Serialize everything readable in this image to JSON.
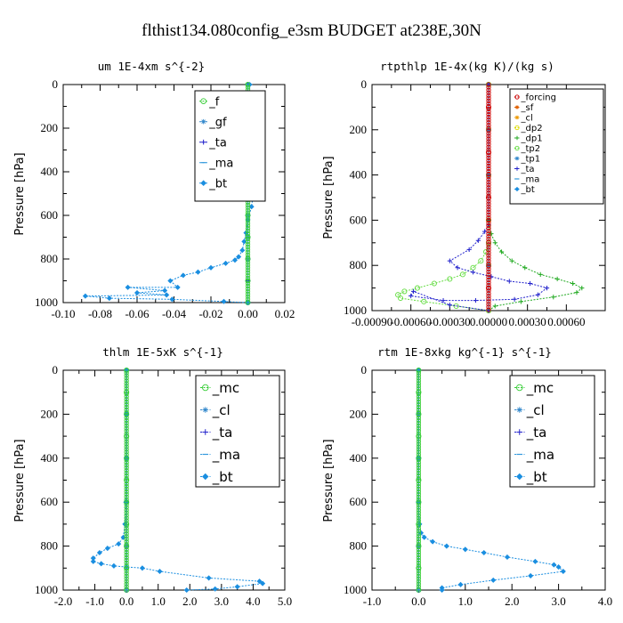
{
  "title": "flthist134.080config_e3sm  BUDGET at238E,30N",
  "chart_data": [
    {
      "type": "line",
      "title": "um  1E-4xm s^{-2}",
      "ylabel": "Pressure [hPa]",
      "xlim": [
        -0.1,
        0.02
      ],
      "ylim": [
        1000,
        0
      ],
      "xticks": [
        "-0.10",
        "-0.08",
        "-0.06",
        "-0.04",
        "-0.02",
        "0.00",
        "0.02"
      ],
      "yticks": [
        "0",
        "200",
        "400",
        "600",
        "800",
        "1000"
      ],
      "legend": "top-right",
      "series": [
        {
          "name": "_f",
          "color": "#33cc33",
          "marker": "circle",
          "x": [
            0,
            0,
            0,
            0,
            0,
            0,
            0,
            0,
            0,
            0,
            0
          ],
          "y": [
            0,
            100,
            200,
            300,
            400,
            500,
            600,
            700,
            800,
            900,
            1000
          ]
        },
        {
          "name": "_gf",
          "color": "#3388cc",
          "marker": "star",
          "x": [
            0,
            0,
            0,
            0,
            0,
            0,
            0,
            0,
            0
          ],
          "y": [
            0,
            150,
            300,
            450,
            600,
            700,
            800,
            900,
            1000
          ]
        },
        {
          "name": "_ta",
          "color": "#2222cc",
          "marker": "plus",
          "x": [
            0,
            0,
            0,
            0,
            0,
            0,
            0
          ],
          "y": [
            0,
            200,
            400,
            600,
            800,
            900,
            1000
          ]
        },
        {
          "name": "_ma",
          "color": "#3399dd",
          "marker": "dash",
          "x": [
            0,
            0,
            0,
            0,
            0,
            0
          ],
          "y": [
            0,
            200,
            400,
            600,
            800,
            1000
          ]
        },
        {
          "name": "_bt",
          "color": "#1a8ee0",
          "marker": "diamond",
          "x": [
            0.001,
            0.001,
            0.002,
            0.003,
            0.003,
            0.002,
            0.0,
            0.0,
            0.002,
            0.003,
            0.002,
            0.0,
            -0.001,
            -0.002,
            -0.003,
            -0.005,
            -0.007,
            -0.012,
            -0.02,
            -0.027,
            -0.035,
            -0.042,
            -0.038,
            -0.065,
            -0.045,
            -0.06,
            -0.044,
            -0.088,
            -0.075,
            -0.041,
            -0.013,
            0.0
          ],
          "y": [
            0,
            100,
            140,
            180,
            220,
            260,
            300,
            380,
            440,
            500,
            560,
            620,
            680,
            720,
            760,
            790,
            805,
            820,
            840,
            860,
            875,
            900,
            930,
            930,
            945,
            955,
            965,
            970,
            980,
            985,
            995,
            1000
          ]
        }
      ]
    },
    {
      "type": "line",
      "title": "rtpthlp  1E-4x(kg K)/(kg s)",
      "ylabel": "Pressure [hPa]",
      "xlim": [
        -0.0009,
        0.0009
      ],
      "ylim": [
        1000,
        0
      ],
      "xticks": [
        "-0.00090",
        "-0.00060",
        "-0.00030",
        "0.00000",
        "0.00030",
        "0.00060"
      ],
      "yticks": [
        "0",
        "200",
        "400",
        "600",
        "800",
        "1000"
      ],
      "legend": "top-right",
      "series": [
        {
          "name": "_forcing",
          "color": "#cc0000",
          "marker": "circle",
          "x": [
            0,
            0,
            0,
            0,
            0,
            0,
            0,
            0,
            0,
            0,
            0
          ],
          "y": [
            0,
            100,
            200,
            300,
            400,
            500,
            600,
            700,
            800,
            900,
            1000
          ]
        },
        {
          "name": "_sf",
          "color": "#e06000",
          "marker": "star",
          "x": [
            0,
            0,
            0,
            0,
            0,
            0
          ],
          "y": [
            0,
            200,
            400,
            600,
            800,
            1000
          ]
        },
        {
          "name": "_cl",
          "color": "#ee9900",
          "marker": "star",
          "x": [
            0,
            0,
            0,
            0,
            0,
            0
          ],
          "y": [
            0,
            200,
            400,
            600,
            800,
            1000
          ]
        },
        {
          "name": "_dp2",
          "color": "#dddd00",
          "marker": "circle",
          "x": [
            0,
            0,
            0,
            0,
            0,
            0
          ],
          "y": [
            0,
            200,
            400,
            600,
            800,
            1000
          ]
        },
        {
          "name": "_dp1",
          "color": "#22aa22",
          "marker": "plus",
          "x": [
            0,
            0,
            2e-05,
            5e-05,
            0.0001,
            0.00018,
            0.00028,
            0.0004,
            0.00053,
            0.00065,
            0.00072,
            0.00068,
            0.0005,
            0.00025,
            5e-05,
            0
          ],
          "y": [
            0,
            600,
            660,
            700,
            740,
            780,
            810,
            840,
            860,
            880,
            900,
            920,
            940,
            960,
            980,
            1000
          ]
        },
        {
          "name": "_tp2",
          "color": "#66dd44",
          "marker": "circle",
          "x": [
            0,
            0,
            -2e-05,
            -6e-05,
            -0.00012,
            -0.0002,
            -0.0003,
            -0.00042,
            -0.00055,
            -0.00065,
            -0.0007,
            -0.00068,
            -0.0005,
            -0.00025,
            0
          ],
          "y": [
            0,
            700,
            740,
            780,
            810,
            840,
            860,
            880,
            900,
            915,
            930,
            945,
            960,
            980,
            1000
          ]
        },
        {
          "name": "_tp1",
          "color": "#3388cc",
          "marker": "star",
          "x": [
            0,
            0,
            0,
            0,
            0,
            0
          ],
          "y": [
            0,
            200,
            400,
            600,
            800,
            1000
          ]
        },
        {
          "name": "_ta",
          "color": "#2222cc",
          "marker": "plus",
          "x": [
            0,
            0,
            -3e-05,
            -8e-05,
            -0.00015,
            -0.0003,
            -0.00024,
            -0.00012,
            2e-05,
            0.00016,
            0.00032,
            0.00045,
            0.00038,
            0.0002,
            -0.0001,
            -0.00035,
            -0.0006,
            -0.00058,
            -0.0003,
            0
          ],
          "y": [
            0,
            620,
            650,
            690,
            730,
            780,
            810,
            830,
            850,
            870,
            880,
            900,
            930,
            950,
            955,
            955,
            935,
            915,
            975,
            1000
          ]
        },
        {
          "name": "_ma",
          "color": "#3399dd",
          "marker": "dash",
          "x": [
            0,
            0,
            0,
            0,
            0,
            0
          ],
          "y": [
            0,
            200,
            400,
            600,
            800,
            1000
          ]
        },
        {
          "name": "_bt",
          "color": "#1a8ee0",
          "marker": "diamond",
          "x": [
            0,
            0,
            0,
            0,
            0,
            0
          ],
          "y": [
            0,
            200,
            400,
            600,
            800,
            1000
          ]
        }
      ]
    },
    {
      "type": "line",
      "title": "thlm  1E-5xK s^{-1}",
      "ylabel": "Pressure [hPa]",
      "xlim": [
        -2.0,
        5.0
      ],
      "ylim": [
        1000,
        0
      ],
      "xticks": [
        "-2.0",
        "-1.0",
        "0.0",
        "1.0",
        "2.0",
        "3.0",
        "4.0",
        "5.0"
      ],
      "yticks": [
        "0",
        "200",
        "400",
        "600",
        "800",
        "1000"
      ],
      "legend": "top-right",
      "series": [
        {
          "name": "_mc",
          "color": "#33cc33",
          "marker": "circle",
          "x": [
            0,
            0,
            0,
            0,
            0,
            0,
            0,
            0,
            0,
            0,
            0
          ],
          "y": [
            0,
            100,
            200,
            300,
            400,
            500,
            600,
            700,
            800,
            900,
            1000
          ]
        },
        {
          "name": "_cl",
          "color": "#3388cc",
          "marker": "star",
          "x": [
            0,
            0,
            0,
            0,
            0,
            0
          ],
          "y": [
            0,
            200,
            400,
            600,
            800,
            1000
          ]
        },
        {
          "name": "_ta",
          "color": "#2222cc",
          "marker": "plus",
          "x": [
            0,
            0,
            0,
            0,
            0,
            0
          ],
          "y": [
            0,
            200,
            400,
            600,
            800,
            1000
          ]
        },
        {
          "name": "_ma",
          "color": "#3399dd",
          "marker": "dash",
          "x": [
            0,
            0,
            0,
            0,
            0,
            0
          ],
          "y": [
            0,
            200,
            400,
            600,
            800,
            1000
          ]
        },
        {
          "name": "_bt",
          "color": "#1a8ee0",
          "marker": "diamond",
          "x": [
            0,
            0,
            0,
            -0.02,
            -0.05,
            -0.1,
            -0.25,
            -0.6,
            -0.85,
            -1.05,
            -1.05,
            -0.8,
            -0.4,
            0.0,
            0.5,
            1.05,
            2.6,
            4.2,
            4.3,
            3.5,
            2.8,
            1.9
          ],
          "y": [
            0,
            200,
            400,
            600,
            700,
            760,
            790,
            810,
            830,
            855,
            870,
            880,
            890,
            895,
            900,
            915,
            945,
            960,
            970,
            985,
            995,
            1000
          ]
        }
      ]
    },
    {
      "type": "line",
      "title": "rtm  1E-8xkg kg^{-1} s^{-1}",
      "ylabel": "Pressure [hPa]",
      "xlim": [
        -1.0,
        4.0
      ],
      "ylim": [
        1000,
        0
      ],
      "xticks": [
        "-1.0",
        "0.0",
        "1.0",
        "2.0",
        "3.0",
        "4.0"
      ],
      "yticks": [
        "0",
        "200",
        "400",
        "600",
        "800",
        "1000"
      ],
      "legend": "top-right",
      "series": [
        {
          "name": "_mc",
          "color": "#33cc33",
          "marker": "circle",
          "x": [
            0,
            0,
            0,
            0,
            0,
            0,
            0,
            0,
            0,
            0,
            0
          ],
          "y": [
            0,
            100,
            200,
            300,
            400,
            500,
            600,
            700,
            800,
            900,
            1000
          ]
        },
        {
          "name": "_cl",
          "color": "#3388cc",
          "marker": "star",
          "x": [
            0,
            0,
            0,
            0,
            0,
            0
          ],
          "y": [
            0,
            200,
            400,
            600,
            800,
            1000
          ]
        },
        {
          "name": "_ta",
          "color": "#2222cc",
          "marker": "plus",
          "x": [
            0,
            0,
            0,
            0,
            0,
            0
          ],
          "y": [
            0,
            200,
            400,
            600,
            800,
            1000
          ]
        },
        {
          "name": "_ma",
          "color": "#3399dd",
          "marker": "dash",
          "x": [
            0,
            0,
            0,
            0,
            0,
            0
          ],
          "y": [
            0,
            200,
            400,
            600,
            800,
            1000
          ]
        },
        {
          "name": "_bt",
          "color": "#1a8ee0",
          "marker": "diamond",
          "x": [
            0,
            0,
            0,
            0.02,
            0.05,
            0.12,
            0.3,
            0.6,
            1.0,
            1.4,
            1.9,
            2.5,
            2.9,
            3.0,
            3.1,
            2.4,
            1.6,
            0.9,
            0.5,
            0.5
          ],
          "y": [
            0,
            400,
            600,
            700,
            740,
            760,
            780,
            800,
            815,
            830,
            850,
            870,
            885,
            895,
            915,
            935,
            955,
            975,
            990,
            1000
          ]
        }
      ]
    }
  ]
}
